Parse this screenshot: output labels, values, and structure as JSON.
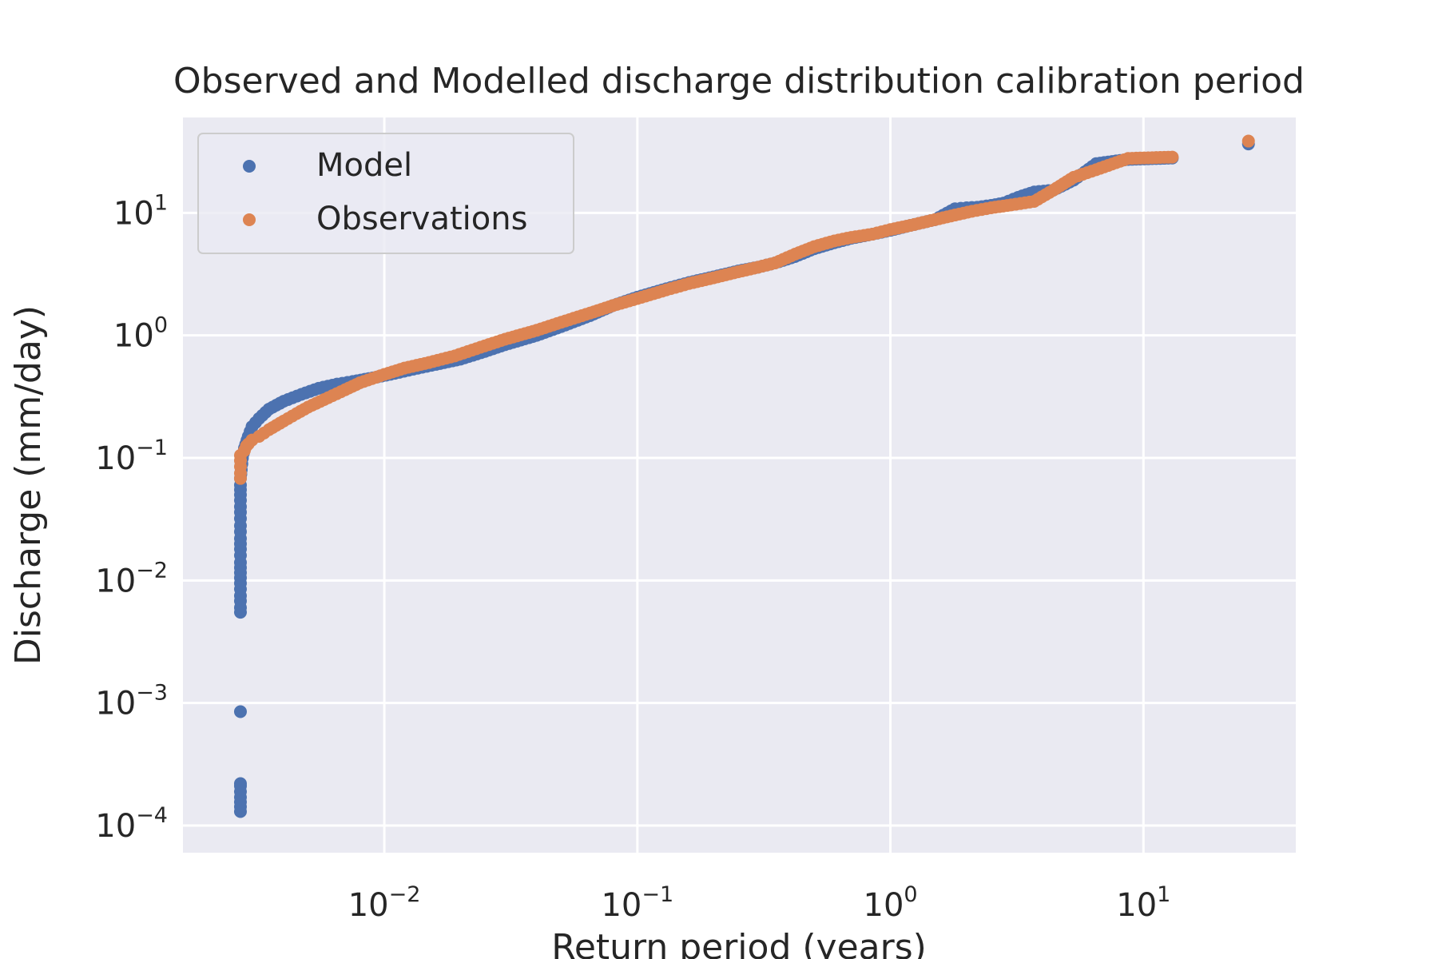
{
  "chart_data": {
    "type": "scatter",
    "title": "Observed and Modelled discharge distribution calibration period",
    "xlabel": "Return period (years)",
    "ylabel": "Discharge (mm/day)",
    "x_scale": "log",
    "y_scale": "log",
    "xlim": [
      0.0016,
      40
    ],
    "ylim": [
      6e-05,
      60
    ],
    "x_ticks": [
      {
        "base": "10",
        "exp": "−2",
        "value": 0.01
      },
      {
        "base": "10",
        "exp": "−1",
        "value": 0.1
      },
      {
        "base": "10",
        "exp": "0",
        "value": 1
      },
      {
        "base": "10",
        "exp": "1",
        "value": 10
      }
    ],
    "y_ticks": [
      {
        "base": "10",
        "exp": "−4",
        "value": 0.0001
      },
      {
        "base": "10",
        "exp": "−3",
        "value": 0.001
      },
      {
        "base": "10",
        "exp": "−2",
        "value": 0.01
      },
      {
        "base": "10",
        "exp": "−1",
        "value": 0.1
      },
      {
        "base": "10",
        "exp": "0",
        "value": 1
      },
      {
        "base": "10",
        "exp": "1",
        "value": 10
      }
    ],
    "grid": true,
    "legend_position": "top-left",
    "series": [
      {
        "name": "Model",
        "color": "#4c72b0",
        "points": [
          [
            0.0027,
            0.00013
          ],
          [
            0.0027,
            0.00017
          ],
          [
            0.0027,
            0.00021
          ],
          [
            0.0027,
            0.00022
          ],
          [
            0.0027,
            0.00085
          ],
          [
            0.0027,
            0.0055
          ],
          [
            0.0027,
            0.006
          ],
          [
            0.0027,
            0.0068
          ],
          [
            0.0027,
            0.0075
          ],
          [
            0.0027,
            0.0085
          ],
          [
            0.0027,
            0.0095
          ],
          [
            0.0027,
            0.0105
          ],
          [
            0.0027,
            0.014
          ],
          [
            0.0027,
            0.016
          ],
          [
            0.0027,
            0.018
          ],
          [
            0.0027,
            0.022
          ],
          [
            0.0027,
            0.025
          ],
          [
            0.0027,
            0.028
          ],
          [
            0.0027,
            0.032
          ],
          [
            0.0027,
            0.036
          ],
          [
            0.0027,
            0.04
          ],
          [
            0.0027,
            0.045
          ],
          [
            0.0027,
            0.05
          ],
          [
            0.0027,
            0.055
          ],
          [
            0.0027,
            0.06
          ],
          [
            0.0027,
            0.068
          ],
          [
            0.00272,
            0.08
          ],
          [
            0.00275,
            0.1
          ],
          [
            0.0028,
            0.12
          ],
          [
            0.0029,
            0.15
          ],
          [
            0.003,
            0.18
          ],
          [
            0.0032,
            0.21
          ],
          [
            0.0035,
            0.25
          ],
          [
            0.004,
            0.29
          ],
          [
            0.0047,
            0.33
          ],
          [
            0.0055,
            0.37
          ],
          [
            0.0065,
            0.4
          ],
          [
            0.0075,
            0.42
          ],
          [
            0.009,
            0.45
          ],
          [
            0.011,
            0.49
          ],
          [
            0.013,
            0.53
          ],
          [
            0.016,
            0.58
          ],
          [
            0.02,
            0.64
          ],
          [
            0.025,
            0.74
          ],
          [
            0.03,
            0.84
          ],
          [
            0.04,
            1.0
          ],
          [
            0.05,
            1.18
          ],
          [
            0.065,
            1.45
          ],
          [
            0.08,
            1.75
          ],
          [
            0.1,
            2.05
          ],
          [
            0.13,
            2.4
          ],
          [
            0.16,
            2.7
          ],
          [
            0.2,
            3.0
          ],
          [
            0.25,
            3.35
          ],
          [
            0.3,
            3.6
          ],
          [
            0.35,
            3.9
          ],
          [
            0.42,
            4.4
          ],
          [
            0.5,
            5.1
          ],
          [
            0.6,
            5.7
          ],
          [
            0.7,
            6.2
          ],
          [
            0.85,
            6.7
          ],
          [
            1.0,
            7.2
          ],
          [
            1.2,
            7.9
          ],
          [
            1.5,
            8.8
          ],
          [
            1.8,
            10.8
          ],
          [
            2.0,
            11.0
          ],
          [
            2.2,
            11.1
          ],
          [
            2.5,
            11.5
          ],
          [
            2.8,
            12.0
          ],
          [
            3.2,
            13.4
          ],
          [
            3.7,
            14.8
          ],
          [
            4.4,
            15.3
          ],
          [
            5.3,
            18.5
          ],
          [
            6.5,
            25.2
          ],
          [
            8.7,
            27.3
          ],
          [
            13.0,
            28.0
          ],
          [
            26.0,
            36.5
          ]
        ]
      },
      {
        "name": "Observations",
        "color": "#dd8452",
        "points": [
          [
            0.0027,
            0.068
          ],
          [
            0.0027,
            0.075
          ],
          [
            0.0027,
            0.085
          ],
          [
            0.0027,
            0.095
          ],
          [
            0.0027,
            0.105
          ],
          [
            0.0028,
            0.115
          ],
          [
            0.00285,
            0.125
          ],
          [
            0.0029,
            0.13
          ],
          [
            0.003,
            0.14
          ],
          [
            0.0032,
            0.15
          ],
          [
            0.0035,
            0.17
          ],
          [
            0.004,
            0.2
          ],
          [
            0.0045,
            0.23
          ],
          [
            0.005,
            0.26
          ],
          [
            0.006,
            0.31
          ],
          [
            0.007,
            0.36
          ],
          [
            0.008,
            0.41
          ],
          [
            0.01,
            0.48
          ],
          [
            0.012,
            0.54
          ],
          [
            0.015,
            0.6
          ],
          [
            0.019,
            0.68
          ],
          [
            0.024,
            0.8
          ],
          [
            0.03,
            0.93
          ],
          [
            0.04,
            1.1
          ],
          [
            0.05,
            1.28
          ],
          [
            0.065,
            1.52
          ],
          [
            0.08,
            1.75
          ],
          [
            0.1,
            2.0
          ],
          [
            0.13,
            2.35
          ],
          [
            0.16,
            2.65
          ],
          [
            0.2,
            2.95
          ],
          [
            0.25,
            3.3
          ],
          [
            0.3,
            3.6
          ],
          [
            0.35,
            3.9
          ],
          [
            0.42,
            4.6
          ],
          [
            0.5,
            5.3
          ],
          [
            0.6,
            5.9
          ],
          [
            0.7,
            6.3
          ],
          [
            0.85,
            6.7
          ],
          [
            1.0,
            7.3
          ],
          [
            1.2,
            7.9
          ],
          [
            1.5,
            8.8
          ],
          [
            1.8,
            9.6
          ],
          [
            2.1,
            10.3
          ],
          [
            2.5,
            11.0
          ],
          [
            3.0,
            11.6
          ],
          [
            3.7,
            12.4
          ],
          [
            4.4,
            15.3
          ],
          [
            5.3,
            19.5
          ],
          [
            6.5,
            22.5
          ],
          [
            8.7,
            27.8
          ],
          [
            13.0,
            28.5
          ],
          [
            26.0,
            38.5
          ]
        ]
      }
    ]
  }
}
